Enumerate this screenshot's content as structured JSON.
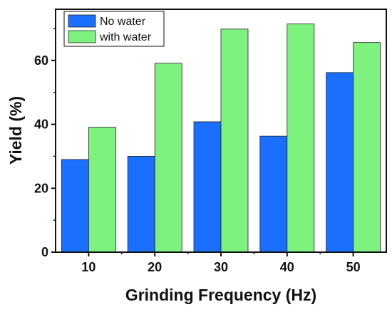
{
  "chart_data": {
    "type": "bar",
    "xlabel": "Grinding Frequency (Hz)",
    "ylabel": "Yield (%)",
    "categories": [
      "10",
      "20",
      "30",
      "40",
      "50"
    ],
    "series": [
      {
        "name": "No water",
        "color": "#1a6fff",
        "values": [
          29,
          30,
          40.8,
          36.3,
          56.2
        ]
      },
      {
        "name": "with water",
        "color": "#7df27f",
        "values": [
          39.1,
          59.1,
          69.8,
          71.4,
          65.6
        ]
      }
    ],
    "ylim": [
      0,
      76
    ],
    "yticks": [
      0,
      20,
      40,
      60
    ],
    "grid": false,
    "legend_position": "top-left"
  }
}
